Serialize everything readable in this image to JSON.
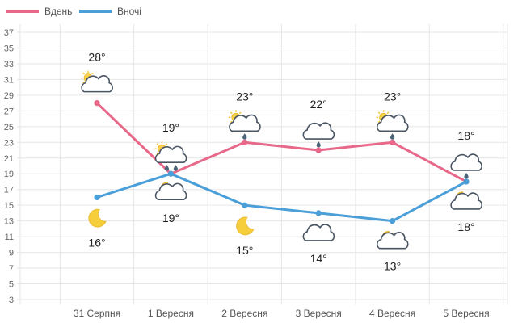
{
  "chart_data": {
    "type": "line",
    "categories": [
      "31 Серпня",
      "1 Вересня",
      "2 Вересня",
      "3 Вересня",
      "4 Вересня",
      "5 Вересня"
    ],
    "ylim": [
      3,
      37
    ],
    "yticks": [
      3,
      5,
      7,
      9,
      11,
      13,
      15,
      17,
      19,
      21,
      23,
      25,
      27,
      29,
      31,
      33,
      35,
      37
    ],
    "grid": true,
    "legend_position": "top-left",
    "series": [
      {
        "name": "Вдень",
        "color": "#e8688a",
        "values": [
          28,
          19,
          23,
          22,
          23,
          18
        ],
        "labels": [
          "28°",
          "19°",
          "23°",
          "22°",
          "23°",
          "18°"
        ],
        "icons": [
          "sun-cloud-icon",
          "sun-cloud-rain-icon",
          "sun-cloud-rain-icon",
          "cloud-rain-icon",
          "sun-cloud-rain-icon",
          "cloud-rain-icon"
        ]
      },
      {
        "name": "Вночі",
        "color": "#4a9fd8",
        "values": [
          16,
          19,
          15,
          14,
          13,
          18
        ],
        "labels": [
          "16°",
          "19°",
          "15°",
          "14°",
          "13°",
          "18°"
        ],
        "icons": [
          "moon-icon",
          "moon-cloud-icon",
          "moon-icon",
          "cloud-icon",
          "moon-cloud-icon",
          "moon-cloud-icon"
        ]
      }
    ]
  }
}
